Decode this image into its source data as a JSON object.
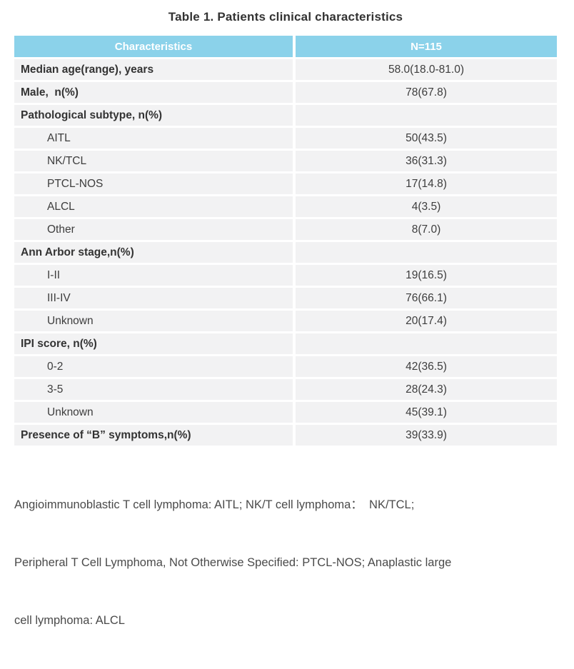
{
  "title": "Table 1. Patients clinical characteristics",
  "table": {
    "columns": [
      {
        "label": "Characteristics"
      },
      {
        "label": "N=115"
      }
    ],
    "rows": [
      {
        "label": "Median age(range), years",
        "value": "58.0(18.0-81.0)"
      },
      {
        "label": "Male,  n(%)",
        "value": "78(67.8)"
      },
      {
        "label": "Pathological subtype, n(%)",
        "value": ""
      },
      {
        "label": "AITL",
        "value": "50(43.5)"
      },
      {
        "label": "NK/TCL",
        "value": "36(31.3)"
      },
      {
        "label": "PTCL-NOS",
        "value": "17(14.8)"
      },
      {
        "label": "ALCL",
        "value": "4(3.5)"
      },
      {
        "label": "Other",
        "value": "8(7.0)"
      },
      {
        "label": "Ann Arbor stage,n(%)",
        "value": ""
      },
      {
        "label": "I-II",
        "value": "19(16.5)"
      },
      {
        "label": "III-IV",
        "value": "76(66.1)"
      },
      {
        "label": "Unknown",
        "value": "20(17.4)"
      },
      {
        "label": "IPI score, n(%)",
        "value": ""
      },
      {
        "label": "0-2",
        "value": "42(36.5)"
      },
      {
        "label": "3-5",
        "value": "28(24.3)"
      },
      {
        "label": "Unknown",
        "value": "45(39.1)"
      },
      {
        "label": "Presence of “B” symptoms,n(%)",
        "value": "39(33.9)"
      }
    ]
  },
  "footnote_lines": [
    "Angioimmunoblastic T cell lymphoma: AITL; NK/T cell lymphoma：  NK/TCL;",
    "Peripheral T Cell Lymphoma, Not Otherwise Specified: PTCL-NOS; Anaplastic large",
    "cell lymphoma: ALCL"
  ],
  "colors": {
    "header_bg": "#8bd2ea",
    "header_text": "#ffffff",
    "row_bg": "#f2f2f3",
    "text": "#3d3d3d"
  }
}
